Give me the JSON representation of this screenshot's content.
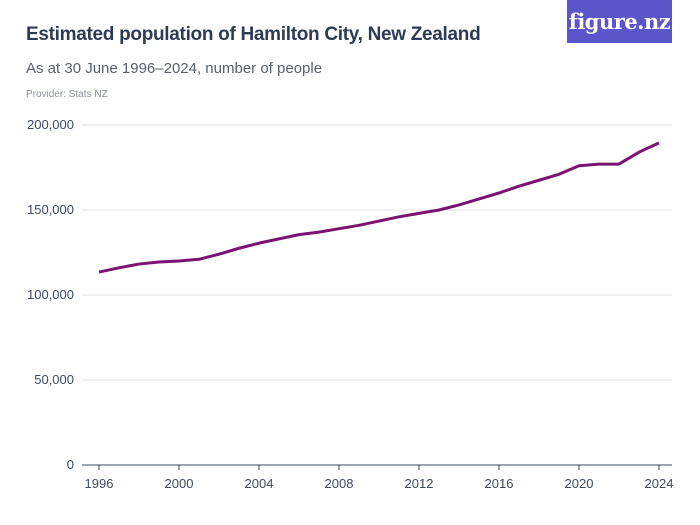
{
  "header": {
    "title": "Estimated population of Hamilton City, New Zealand",
    "subtitle": "As at 30 June 1996–2024, number of people",
    "provider": "Provider: Stats NZ",
    "logo": "figure.nz"
  },
  "colors": {
    "line": "#7b1370",
    "grid": "#e0e0e0",
    "logo_bg": "#5a55c8"
  },
  "chart_data": {
    "type": "line",
    "title": "Estimated population of Hamilton City, New Zealand",
    "subtitle": "As at 30 June 1996–2024, number of people",
    "xlabel": "",
    "ylabel": "",
    "ylim": [
      0,
      200000
    ],
    "yticks": [
      0,
      50000,
      100000,
      150000,
      200000
    ],
    "ytick_labels": [
      "0",
      "50,000",
      "100,000",
      "150,000",
      "200,000"
    ],
    "xticks": [
      1996,
      2000,
      2004,
      2008,
      2012,
      2016,
      2020,
      2024
    ],
    "grid": true,
    "x": [
      1996,
      1997,
      1998,
      1999,
      2000,
      2001,
      2002,
      2003,
      2004,
      2005,
      2006,
      2007,
      2008,
      2009,
      2010,
      2011,
      2012,
      2013,
      2014,
      2015,
      2016,
      2017,
      2018,
      2019,
      2020,
      2021,
      2022,
      2023,
      2024
    ],
    "series": [
      {
        "name": "Population",
        "values": [
          113500,
          116000,
          118200,
          119400,
          120000,
          121000,
          124000,
          127500,
          130500,
          133000,
          135500,
          137000,
          139000,
          141000,
          143500,
          146000,
          148000,
          150000,
          153000,
          156500,
          160000,
          164000,
          167500,
          171000,
          176000,
          177000,
          177000,
          184000,
          189500
        ]
      }
    ]
  }
}
